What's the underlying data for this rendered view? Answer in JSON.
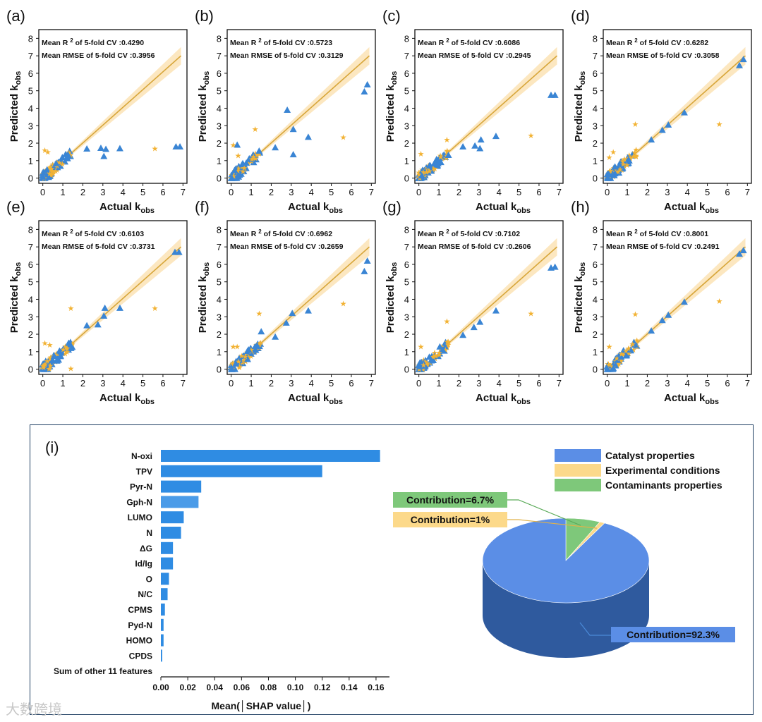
{
  "chart_data": [
    {
      "id": "a",
      "label": "(a)",
      "type": "scatter",
      "xlabel": "Actual k",
      "xlabel_sub": "obs",
      "ylabel": "Predicted k",
      "ylabel_sub": "obs",
      "xlim": [
        -0.2,
        7.2
      ],
      "ylim": [
        -0.3,
        8.5
      ],
      "xticks": [
        "0",
        "1",
        "2",
        "3",
        "4",
        "5",
        "6",
        "7"
      ],
      "yticks": [
        "0",
        "1",
        "2",
        "3",
        "4",
        "5",
        "6",
        "7",
        "8"
      ],
      "fit_line": [
        [
          1.3,
          1.3
        ],
        [
          6.9,
          7.0
        ]
      ],
      "band": {
        "start_width": 0.2,
        "end_width": 1.0
      },
      "annotation_r2_prefix": "Mean R",
      "annotation_r2_sup": "2",
      "annotation_r2_suffix": " of 5-fold CV :",
      "r2": "0.4290",
      "annotation_rmse_prefix": "Mean RMSE of 5-fold CV :",
      "rmse": "0.3956",
      "outliers_triangle": [
        [
          2.2,
          1.68
        ],
        [
          2.9,
          1.72
        ],
        [
          3.05,
          1.25
        ],
        [
          3.15,
          1.66
        ],
        [
          3.85,
          1.7
        ],
        [
          6.65,
          1.8
        ],
        [
          6.85,
          1.8
        ]
      ],
      "outliers_star": [
        [
          5.6,
          1.7
        ],
        [
          0.1,
          1.6
        ],
        [
          0.25,
          1.5
        ]
      ]
    },
    {
      "id": "b",
      "label": "(b)",
      "type": "scatter",
      "xlabel": "Actual k",
      "xlabel_sub": "obs",
      "ylabel": "Predicted k",
      "ylabel_sub": "obs",
      "xlim": [
        -0.2,
        7.2
      ],
      "ylim": [
        -0.3,
        8.5
      ],
      "xticks": [
        "0",
        "1",
        "2",
        "3",
        "4",
        "5",
        "6",
        "7"
      ],
      "yticks": [
        "0",
        "1",
        "2",
        "3",
        "4",
        "5",
        "6",
        "7",
        "8"
      ],
      "fit_line": [
        [
          1.3,
          1.3
        ],
        [
          6.9,
          7.0
        ]
      ],
      "band": {
        "start_width": 0.2,
        "end_width": 1.0
      },
      "annotation_r2_prefix": "Mean R",
      "annotation_r2_sup": "2",
      "annotation_r2_suffix": " of 5-fold CV :",
      "r2": "0.5723",
      "annotation_rmse_prefix": "Mean RMSE of 5-fold CV :",
      "rmse": "0.3129",
      "outliers_triangle": [
        [
          2.2,
          1.75
        ],
        [
          2.8,
          3.9
        ],
        [
          3.1,
          2.8
        ],
        [
          3.1,
          1.35
        ],
        [
          3.85,
          2.35
        ],
        [
          6.65,
          4.95
        ],
        [
          6.8,
          5.35
        ],
        [
          0.3,
          1.9
        ]
      ],
      "outliers_star": [
        [
          5.6,
          2.35
        ],
        [
          1.2,
          2.8
        ],
        [
          0.1,
          1.9
        ],
        [
          0.35,
          1.3
        ]
      ]
    },
    {
      "id": "c",
      "label": "(c)",
      "type": "scatter",
      "xlabel": "Actual k",
      "xlabel_sub": "obs",
      "ylabel": "Predicted k",
      "ylabel_sub": "obs",
      "xlim": [
        -0.2,
        7.2
      ],
      "ylim": [
        -0.3,
        8.5
      ],
      "xticks": [
        "0",
        "1",
        "2",
        "3",
        "4",
        "5",
        "6",
        "7"
      ],
      "yticks": [
        "0",
        "1",
        "2",
        "3",
        "4",
        "5",
        "6",
        "7",
        "8"
      ],
      "fit_line": [
        [
          1.3,
          1.3
        ],
        [
          6.9,
          7.0
        ]
      ],
      "band": {
        "start_width": 0.2,
        "end_width": 1.0
      },
      "annotation_r2_prefix": "Mean R",
      "annotation_r2_sup": "2",
      "annotation_r2_suffix": " of 5-fold CV :",
      "r2": "0.6086",
      "annotation_rmse_prefix": "Mean RMSE of 5-fold CV :",
      "rmse": "0.2945",
      "outliers_triangle": [
        [
          2.2,
          1.8
        ],
        [
          2.8,
          1.85
        ],
        [
          3.05,
          1.7
        ],
        [
          3.1,
          2.2
        ],
        [
          3.85,
          2.4
        ],
        [
          6.6,
          4.75
        ],
        [
          6.8,
          4.75
        ]
      ],
      "outliers_star": [
        [
          5.6,
          2.45
        ],
        [
          1.4,
          2.2
        ],
        [
          0.1,
          1.4
        ]
      ]
    },
    {
      "id": "d",
      "label": "(d)",
      "type": "scatter",
      "xlabel": "Actual k",
      "xlabel_sub": "obs",
      "ylabel": "Predicted k",
      "ylabel_sub": "obs",
      "xlim": [
        -0.2,
        7.2
      ],
      "ylim": [
        -0.3,
        8.5
      ],
      "xticks": [
        "0",
        "1",
        "2",
        "3",
        "4",
        "5",
        "6",
        "7"
      ],
      "yticks": [
        "0",
        "1",
        "2",
        "3",
        "4",
        "5",
        "6",
        "7",
        "8"
      ],
      "fit_line": [
        [
          1.3,
          1.3
        ],
        [
          6.9,
          7.0
        ]
      ],
      "band": {
        "start_width": 0.2,
        "end_width": 1.0
      },
      "annotation_r2_prefix": "Mean R",
      "annotation_r2_sup": "2",
      "annotation_r2_suffix": " of 5-fold CV :",
      "r2": "0.6282",
      "annotation_rmse_prefix": "Mean RMSE of 5-fold CV :",
      "rmse": "0.3058",
      "outliers_triangle": [
        [
          2.2,
          2.2
        ],
        [
          2.75,
          2.75
        ],
        [
          3.05,
          3.05
        ],
        [
          3.85,
          3.75
        ],
        [
          6.6,
          6.45
        ],
        [
          6.8,
          6.8
        ]
      ],
      "outliers_star": [
        [
          5.6,
          3.1
        ],
        [
          1.4,
          3.1
        ],
        [
          0.3,
          1.5
        ],
        [
          0.1,
          1.2
        ]
      ]
    },
    {
      "id": "e",
      "label": "(e)",
      "type": "scatter",
      "xlabel": "Actual k",
      "xlabel_sub": "obs",
      "ylabel": "Predicted k",
      "ylabel_sub": "obs",
      "xlim": [
        -0.2,
        7.2
      ],
      "ylim": [
        -0.3,
        8.5
      ],
      "xticks": [
        "0",
        "1",
        "2",
        "3",
        "4",
        "5",
        "6",
        "7"
      ],
      "yticks": [
        "0",
        "1",
        "2",
        "3",
        "4",
        "5",
        "6",
        "7",
        "8"
      ],
      "fit_line": [
        [
          1.3,
          1.3
        ],
        [
          6.9,
          7.0
        ]
      ],
      "band": {
        "start_width": 0.2,
        "end_width": 1.0
      },
      "annotation_r2_prefix": "Mean R",
      "annotation_r2_sup": "2",
      "annotation_r2_suffix": " of 5-fold CV :",
      "r2": "0.6103",
      "annotation_rmse_prefix": "Mean RMSE of 5-fold CV :",
      "rmse": "0.3731",
      "outliers_triangle": [
        [
          2.2,
          2.5
        ],
        [
          2.75,
          2.55
        ],
        [
          3.05,
          3.05
        ],
        [
          3.1,
          3.5
        ],
        [
          3.85,
          3.5
        ],
        [
          6.6,
          6.7
        ],
        [
          6.8,
          6.7
        ]
      ],
      "outliers_star": [
        [
          5.6,
          3.5
        ],
        [
          1.4,
          3.5
        ],
        [
          1.4,
          0.05
        ],
        [
          0.1,
          1.5
        ],
        [
          0.35,
          1.4
        ]
      ]
    },
    {
      "id": "f",
      "label": "(f)",
      "type": "scatter",
      "xlabel": "Actual k",
      "xlabel_sub": "obs",
      "ylabel": "Predicted k",
      "ylabel_sub": "obs",
      "xlim": [
        -0.2,
        7.2
      ],
      "ylim": [
        -0.3,
        8.5
      ],
      "xticks": [
        "0",
        "1",
        "2",
        "3",
        "4",
        "5",
        "6",
        "7"
      ],
      "yticks": [
        "0",
        "1",
        "2",
        "3",
        "4",
        "5",
        "6",
        "7",
        "8"
      ],
      "fit_line": [
        [
          1.3,
          1.3
        ],
        [
          6.9,
          7.0
        ]
      ],
      "band": {
        "start_width": 0.2,
        "end_width": 1.0
      },
      "annotation_r2_prefix": "Mean R",
      "annotation_r2_sup": "2",
      "annotation_r2_suffix": " of 5-fold CV :",
      "r2": "0.6962",
      "annotation_rmse_prefix": "Mean RMSE of 5-fold CV :",
      "rmse": "0.2659",
      "outliers_triangle": [
        [
          2.2,
          1.85
        ],
        [
          2.75,
          2.65
        ],
        [
          3.05,
          3.2
        ],
        [
          3.85,
          3.35
        ],
        [
          6.65,
          5.6
        ],
        [
          6.8,
          6.2
        ],
        [
          1.5,
          2.15
        ]
      ],
      "outliers_star": [
        [
          5.6,
          3.75
        ],
        [
          1.4,
          3.2
        ],
        [
          0.1,
          1.3
        ],
        [
          0.3,
          1.3
        ]
      ]
    },
    {
      "id": "g",
      "label": "(g)",
      "type": "scatter",
      "xlabel": "Actual k",
      "xlabel_sub": "obs",
      "ylabel": "Predicted k",
      "ylabel_sub": "obs",
      "xlim": [
        -0.2,
        7.2
      ],
      "ylim": [
        -0.3,
        8.5
      ],
      "xticks": [
        "0",
        "1",
        "2",
        "3",
        "4",
        "5",
        "6",
        "7"
      ],
      "yticks": [
        "0",
        "1",
        "2",
        "3",
        "4",
        "5",
        "6",
        "7",
        "8"
      ],
      "fit_line": [
        [
          1.3,
          1.3
        ],
        [
          6.9,
          7.0
        ]
      ],
      "band": {
        "start_width": 0.2,
        "end_width": 1.0
      },
      "annotation_r2_prefix": "Mean R",
      "annotation_r2_sup": "2",
      "annotation_r2_suffix": " of 5-fold CV :",
      "r2": "0.7102",
      "annotation_rmse_prefix": "Mean RMSE of 5-fold CV :",
      "rmse": "0.2606",
      "outliers_triangle": [
        [
          2.2,
          1.95
        ],
        [
          2.75,
          2.4
        ],
        [
          3.05,
          2.7
        ],
        [
          3.85,
          3.35
        ],
        [
          6.6,
          5.8
        ],
        [
          6.8,
          5.85
        ]
      ],
      "outliers_star": [
        [
          5.6,
          3.2
        ],
        [
          1.4,
          2.75
        ],
        [
          0.1,
          1.3
        ]
      ]
    },
    {
      "id": "h",
      "label": "(h)",
      "type": "scatter",
      "xlabel": "Actual k",
      "xlabel_sub": "obs",
      "ylabel": "Predicted k",
      "ylabel_sub": "obs",
      "xlim": [
        -0.2,
        7.2
      ],
      "ylim": [
        -0.3,
        8.5
      ],
      "xticks": [
        "0",
        "1",
        "2",
        "3",
        "4",
        "5",
        "6",
        "7"
      ],
      "yticks": [
        "0",
        "1",
        "2",
        "3",
        "4",
        "5",
        "6",
        "7",
        "8"
      ],
      "fit_line": [
        [
          1.3,
          1.3
        ],
        [
          6.9,
          7.0
        ]
      ],
      "band": {
        "start_width": 0.2,
        "end_width": 1.0
      },
      "annotation_r2_prefix": "Mean R",
      "annotation_r2_sup": "2",
      "annotation_r2_suffix": " of 5-fold CV :",
      "r2": "0.8001",
      "annotation_rmse_prefix": "Mean RMSE of 5-fold CV :",
      "rmse": "0.2491",
      "outliers_triangle": [
        [
          2.2,
          2.2
        ],
        [
          2.75,
          2.8
        ],
        [
          3.05,
          3.1
        ],
        [
          3.85,
          3.85
        ],
        [
          6.6,
          6.6
        ],
        [
          6.8,
          6.8
        ]
      ],
      "outliers_star": [
        [
          5.6,
          3.9
        ],
        [
          1.4,
          3.15
        ],
        [
          0.1,
          1.3
        ]
      ]
    },
    {
      "id": "i",
      "label": "(i)",
      "type": "bar",
      "orientation": "horizontal",
      "categories": [
        "N-oxi",
        "TPV",
        "Pyr-N",
        "Gph-N",
        "LUMO",
        "N",
        "ΔG",
        "Id/Ig",
        "O",
        "N/C",
        "CPMS",
        "Pyd-N",
        "HOMO",
        "CPDS",
        "Sum of other 11 features"
      ],
      "values": [
        0.163,
        0.12,
        0.03,
        0.028,
        0.017,
        0.015,
        0.009,
        0.009,
        0.006,
        0.005,
        0.003,
        0.002,
        0.002,
        0.001,
        0.0
      ],
      "xlim": [
        0,
        0.17
      ],
      "xticks": [
        "0.00",
        "0.02",
        "0.04",
        "0.06",
        "0.08",
        "0.10",
        "0.12",
        "0.14",
        "0.16"
      ],
      "xlabel": "Mean(│SHAP value│)"
    },
    {
      "id": "i-pie",
      "type": "pie",
      "slices": [
        {
          "name": "Catalyst properties",
          "value": 92.3,
          "color": "#5b8ee6",
          "callout": "Contribution=92.3%"
        },
        {
          "name": "Experimental conditions",
          "value": 1.0,
          "color": "#fcd98a",
          "callout": "Contribution=1%"
        },
        {
          "name": "Contaminants properties",
          "value": 6.7,
          "color": "#7ec87a",
          "callout": "Contribution=6.7%"
        }
      ]
    }
  ],
  "colors": {
    "triangle": "#3a85d4",
    "star": "#f2b233",
    "fit": "#d7a63a",
    "band": "#fbe3b5",
    "bar": "#2f8ce3"
  },
  "watermark": "大数跨境"
}
